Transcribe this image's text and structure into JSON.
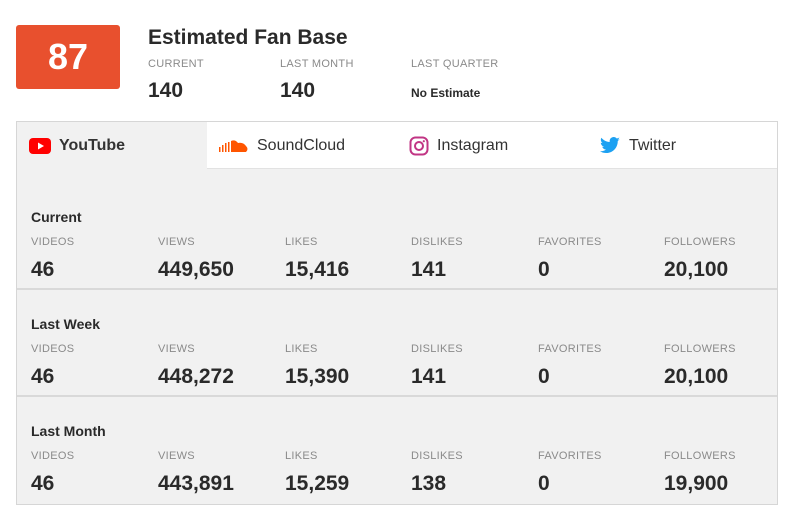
{
  "score": "87",
  "fan_base": {
    "title": "Estimated Fan Base",
    "current_label": "CURRENT",
    "current_value": "140",
    "last_month_label": "LAST MONTH",
    "last_month_value": "140",
    "last_quarter_label": "LAST QUARTER",
    "last_quarter_value": "No Estimate"
  },
  "tabs": [
    {
      "label": "YouTube",
      "icon": "youtube-icon",
      "color": "#ff0000",
      "active": true
    },
    {
      "label": "SoundCloud",
      "icon": "soundcloud-icon",
      "color": "#ff5500",
      "active": false
    },
    {
      "label": "Instagram",
      "icon": "instagram-icon",
      "color": "#c13584",
      "active": false
    },
    {
      "label": "Twitter",
      "icon": "twitter-icon",
      "color": "#1da1f2",
      "active": false
    }
  ],
  "columns": [
    "VIDEOS",
    "VIEWS",
    "LIKES",
    "DISLIKES",
    "FAVORITES",
    "FOLLOWERS"
  ],
  "sections": [
    {
      "title": "Current",
      "values": [
        "46",
        "449,650",
        "15,416",
        "141",
        "0",
        "20,100"
      ]
    },
    {
      "title": "Last Week",
      "values": [
        "46",
        "448,272",
        "15,390",
        "141",
        "0",
        "20,100"
      ]
    },
    {
      "title": "Last Month",
      "values": [
        "46",
        "443,891",
        "15,259",
        "138",
        "0",
        "19,900"
      ]
    }
  ],
  "colors": {
    "score_bg": "#e8502e",
    "panel_bg": "#f1f1f1"
  }
}
